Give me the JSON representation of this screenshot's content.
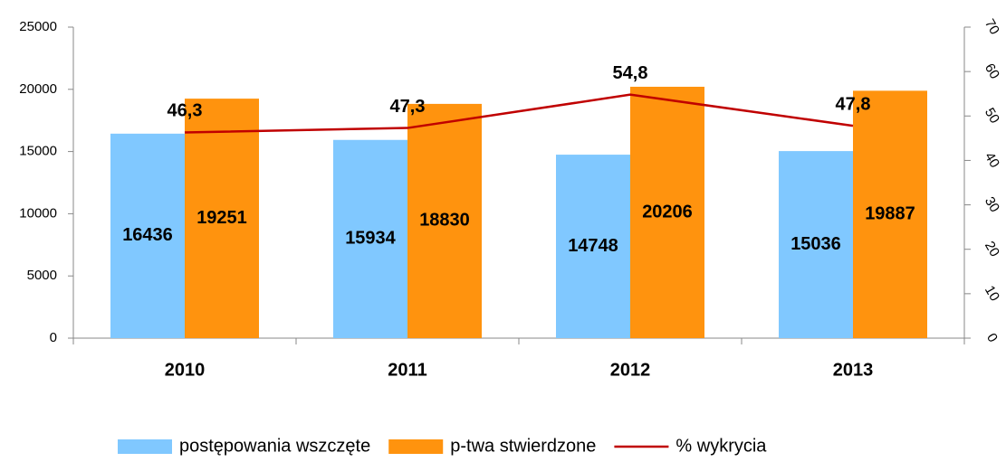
{
  "chart_data": {
    "type": "bar",
    "categories": [
      "2010",
      "2011",
      "2012",
      "2013"
    ],
    "series": [
      {
        "name": "postępowania wszczęte",
        "color": "#80c8ff",
        "values": [
          16436,
          15934,
          14748,
          15036
        ]
      },
      {
        "name": "p-twa stwierdzone",
        "color": "#ff930e",
        "values": [
          19251,
          18830,
          20206,
          19887
        ]
      },
      {
        "name": "% wykrycia",
        "type": "line",
        "axis": "y2",
        "color": "#c00000",
        "values": [
          46.3,
          47.3,
          54.8,
          47.8
        ],
        "value_labels": [
          "46,3",
          "47,3",
          "54,8",
          "47,8"
        ]
      }
    ],
    "ylim": [
      0,
      25000
    ],
    "yticks": [
      0,
      5000,
      10000,
      15000,
      20000,
      25000
    ],
    "y2lim": [
      0,
      70
    ],
    "y2ticks": [
      0,
      10,
      20,
      30,
      40,
      50,
      60,
      70
    ],
    "legend": "bottom"
  }
}
